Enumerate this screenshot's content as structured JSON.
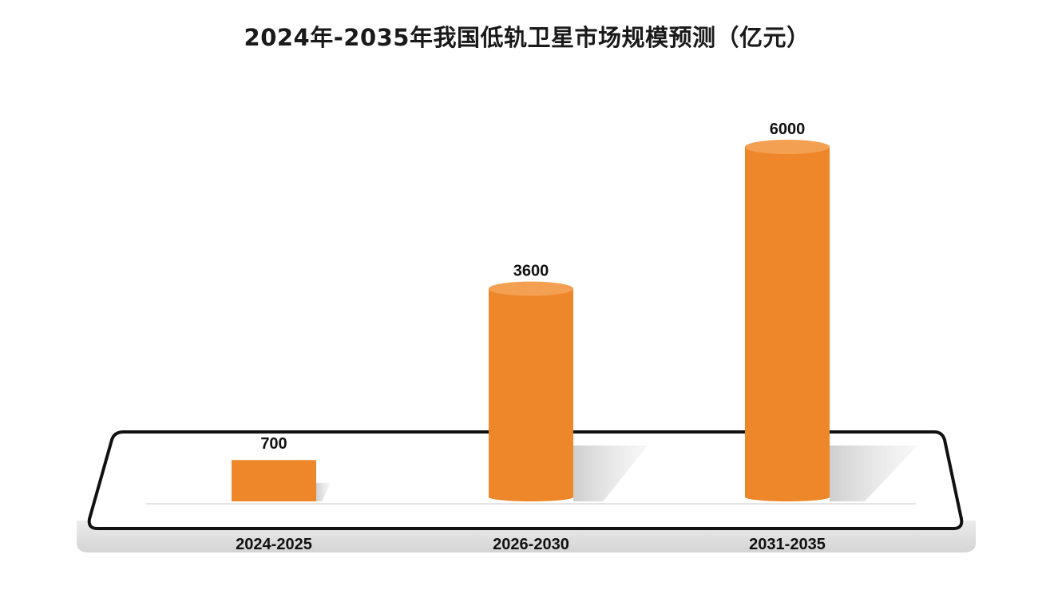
{
  "chart_data": {
    "type": "bar",
    "title": "2024年-2035年我国低轨卫星市场规模预测（亿元）",
    "categories": [
      "2024-2025",
      "2026-2030",
      "2031-2035"
    ],
    "values": [
      700,
      3600,
      6000
    ],
    "value_labels": [
      "700",
      "3600",
      "6000"
    ],
    "ylim": [
      0,
      6000
    ],
    "grid": false,
    "legend": "none",
    "colors": {
      "bar": "#ee862a",
      "bar_top": "#f4a052",
      "platform_border": "#111111",
      "platform_base": "#e2e2e2"
    }
  }
}
